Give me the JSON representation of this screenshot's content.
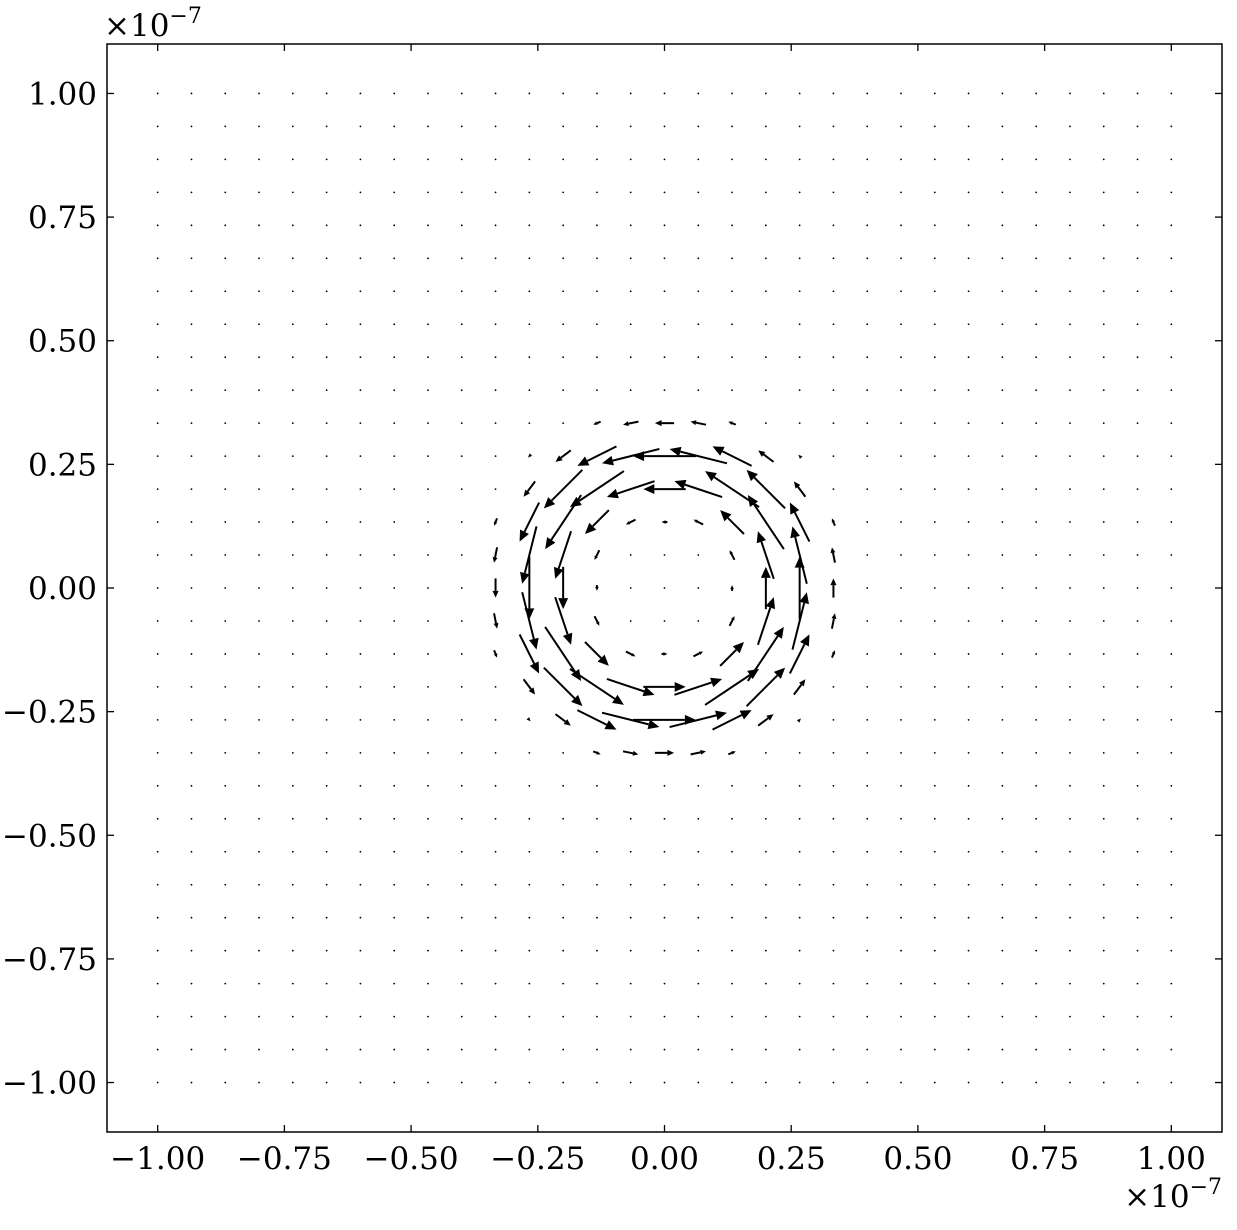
{
  "chart_data": {
    "type": "quiver",
    "title": "",
    "xlabel": "",
    "ylabel": "",
    "xlim": [
      -1.1,
      1.1
    ],
    "ylim": [
      -1.1,
      1.1
    ],
    "x_ticks": [
      "−1.00",
      "−0.75",
      "−0.50",
      "−0.25",
      "0.00",
      "0.25",
      "0.50",
      "0.75",
      "1.00"
    ],
    "y_ticks": [
      "−1.00",
      "−0.75",
      "−0.50",
      "−0.25",
      "0.00",
      "0.25",
      "0.50",
      "0.75",
      "1.00"
    ],
    "x_tick_values": [
      -1.0,
      -0.75,
      -0.5,
      -0.25,
      0.0,
      0.25,
      0.5,
      0.75,
      1.0
    ],
    "y_tick_values": [
      -1.0,
      -0.75,
      -0.5,
      -0.25,
      0.0,
      0.25,
      0.5,
      0.75,
      1.0
    ],
    "x_offset_text": {
      "base": "×10",
      "exponent": "−7"
    },
    "y_offset_text": {
      "base": "×10",
      "exponent": "−7"
    },
    "grid": false,
    "field": {
      "pattern": "counter-clockwise vortex (circular ring)",
      "center": [
        0.0,
        0.0
      ],
      "ring_radius": 0.25,
      "grid_x_range": [
        -1.0,
        1.0
      ],
      "grid_y_range": [
        -1.0,
        1.0
      ],
      "grid_count": 31
    },
    "colors": {
      "arrows": "#000000",
      "axes": "#000000",
      "background": "#ffffff"
    }
  }
}
